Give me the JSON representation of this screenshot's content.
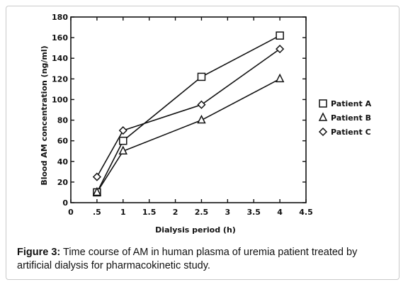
{
  "chart_data": {
    "type": "line",
    "xlabel": "Dialysis period (h)",
    "ylabel": "Blood AM concentration (ng/ml)",
    "xlim": [
      0,
      4.5
    ],
    "ylim": [
      0,
      180
    ],
    "x_ticks": [
      0,
      0.5,
      1,
      1.5,
      2,
      2.5,
      3,
      3.5,
      4,
      4.5
    ],
    "x_tick_labels": [
      "0",
      ".5",
      "1",
      "1.5",
      "2",
      "2.5",
      "3",
      "3.5",
      "4",
      "4.5"
    ],
    "y_ticks": [
      0,
      20,
      40,
      60,
      80,
      100,
      120,
      140,
      160,
      180
    ],
    "y_tick_labels": [
      "0",
      "20",
      "40",
      "60",
      "80",
      "100",
      "120",
      "140",
      "160",
      "180"
    ],
    "grid": false,
    "legend_position": "right",
    "x": [
      0.5,
      1,
      2.5,
      4
    ],
    "series": [
      {
        "name": "Patient A",
        "marker": "square",
        "values": [
          10,
          60,
          122,
          162
        ]
      },
      {
        "name": "Patient B",
        "marker": "triangle",
        "values": [
          10,
          50,
          80,
          120
        ]
      },
      {
        "name": "Patient C",
        "marker": "diamond",
        "values": [
          25,
          70,
          95,
          149
        ]
      }
    ]
  },
  "caption": {
    "label": "Figure 3:",
    "text": " Time course of AM in human plasma of uremia patient treated by artificial dialysis for pharmacokinetic study."
  }
}
